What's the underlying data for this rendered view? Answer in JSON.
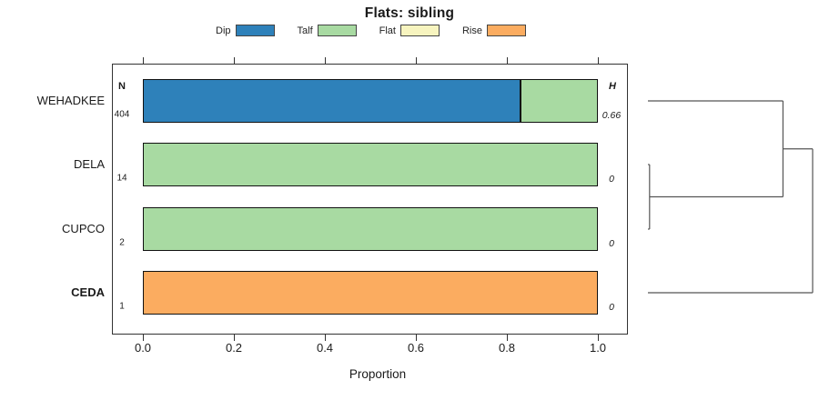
{
  "title": "Flats: sibling",
  "x_axis": {
    "label": "Proportion"
  },
  "columns": {
    "n_header": "N",
    "h_header": "H"
  },
  "legend": [
    {
      "label": "Dip",
      "color": "#2e81ba"
    },
    {
      "label": "Talf",
      "color": "#a8daa2"
    },
    {
      "label": "Flat",
      "color": "#f7f4bf"
    },
    {
      "label": "Rise",
      "color": "#fbac60"
    }
  ],
  "chart_data": {
    "type": "bar",
    "orientation": "horizontal",
    "stacked": true,
    "title": "Flats: sibling",
    "xlabel": "Proportion",
    "xlim": [
      0,
      1
    ],
    "xticks": [
      "0.0",
      "0.2",
      "0.4",
      "0.6",
      "0.8",
      "1.0"
    ],
    "grid": false,
    "categories": [
      "WEHADKEE",
      "DELA",
      "CUPCO",
      "CEDA"
    ],
    "bold_categories": [
      "CEDA"
    ],
    "n_values": [
      "404",
      "14",
      "2",
      "1"
    ],
    "h_values": [
      "0.66",
      "0",
      "0",
      "0"
    ],
    "series": [
      {
        "name": "Dip",
        "color": "#2e81ba",
        "values": [
          0.83,
          0,
          0,
          0
        ]
      },
      {
        "name": "Talf",
        "color": "#a8daa2",
        "values": [
          0.17,
          1,
          1,
          0
        ]
      },
      {
        "name": "Flat",
        "color": "#f7f4bf",
        "values": [
          0,
          0,
          0,
          0
        ]
      },
      {
        "name": "Rise",
        "color": "#fbac60",
        "values": [
          0,
          0,
          0,
          1
        ]
      }
    ],
    "dendrogram": {
      "leaves": [
        "WEHADKEE",
        "DELA",
        "CUPCO",
        "CEDA"
      ],
      "merges": [
        {
          "children": [
            "DELA",
            "CUPCO"
          ],
          "height": 0.01
        },
        {
          "children": [
            "WEHADKEE",
            "m0"
          ],
          "height": 0.82
        },
        {
          "children": [
            "m1",
            "CEDA"
          ],
          "height": 1.0
        }
      ]
    },
    "colors": {
      "bar_border": "#111111",
      "box_border": "#333333",
      "dendrogram_line": "#555555"
    }
  }
}
